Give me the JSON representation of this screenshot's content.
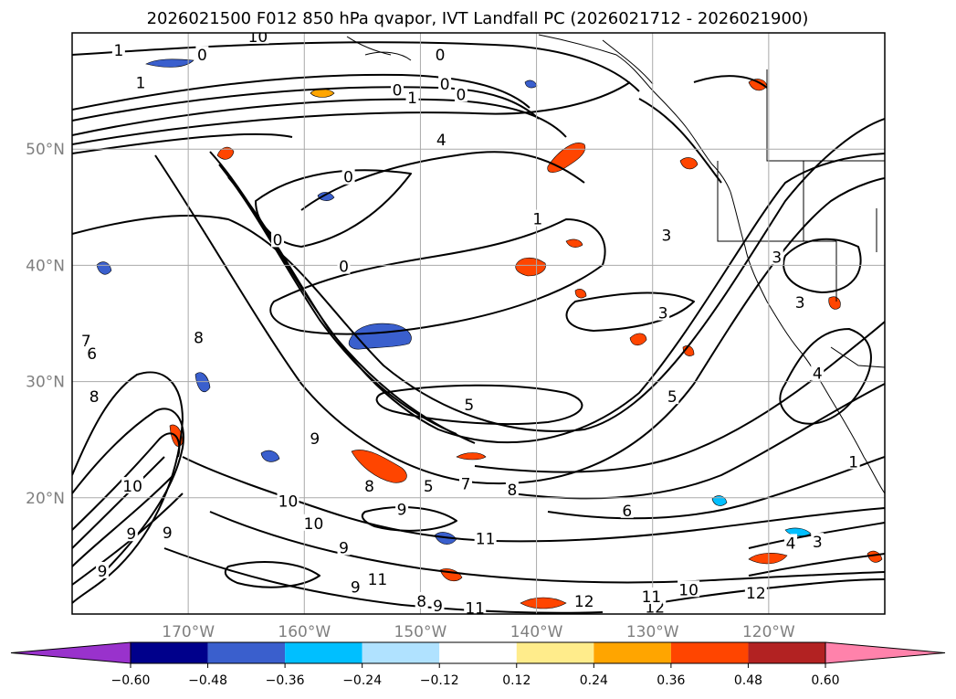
{
  "title": "2026021500 F012 850 hPa qvapor, IVT Landfall PC (2026021712 - 2026021900)",
  "map": {
    "lat_labels": [
      "50°N",
      "40°N",
      "30°N",
      "20°N"
    ],
    "lon_labels": [
      "170°W",
      "160°W",
      "150°W",
      "140°W",
      "130°W",
      "120°W"
    ],
    "lat_values": [
      50,
      40,
      30,
      20
    ],
    "lon_values": [
      -170,
      -160,
      -150,
      -140,
      -130,
      -120
    ],
    "lon_range": [
      -180,
      -110
    ],
    "lat_range": [
      10,
      60
    ],
    "grid": true,
    "contour_labels": [
      {
        "text": "1",
        "lon": -176,
        "lat": 58.5
      },
      {
        "text": "0",
        "lon": -168.8,
        "lat": 58.1
      },
      {
        "text": "1",
        "lon": -174.1,
        "lat": 55.7
      },
      {
        "text": "10",
        "lon": -164,
        "lat": 59.7
      },
      {
        "text": "0",
        "lon": -148.3,
        "lat": 58.1
      },
      {
        "text": "0",
        "lon": -152,
        "lat": 55.1
      },
      {
        "text": "1",
        "lon": -150.7,
        "lat": 54.4
      },
      {
        "text": "0",
        "lon": -147.9,
        "lat": 55.6
      },
      {
        "text": "0",
        "lon": -146.5,
        "lat": 54.7
      },
      {
        "text": "4",
        "lon": -148.2,
        "lat": 50.8
      },
      {
        "text": "0",
        "lon": -156.2,
        "lat": 47.6
      },
      {
        "text": "1",
        "lon": -139.9,
        "lat": 44
      },
      {
        "text": "3",
        "lon": -128.8,
        "lat": 42.6
      },
      {
        "text": "0",
        "lon": -156.6,
        "lat": 39.9
      },
      {
        "text": "0",
        "lon": -162.3,
        "lat": 42.2
      },
      {
        "text": "3",
        "lon": -129.1,
        "lat": 35.9
      },
      {
        "text": "3",
        "lon": -119.3,
        "lat": 40.7
      },
      {
        "text": "5",
        "lon": -145.8,
        "lat": 28
      },
      {
        "text": "5",
        "lon": -128.3,
        "lat": 28.7
      },
      {
        "text": "9",
        "lon": -159.1,
        "lat": 25.1
      },
      {
        "text": "10",
        "lon": -161.4,
        "lat": 19.7
      },
      {
        "text": "10",
        "lon": -174.8,
        "lat": 21
      },
      {
        "text": "10",
        "lon": -159.2,
        "lat": 17.8
      },
      {
        "text": "9",
        "lon": -174.9,
        "lat": 16.9
      },
      {
        "text": "9",
        "lon": -177.4,
        "lat": 13.7
      },
      {
        "text": "11",
        "lon": -144.4,
        "lat": 16.5
      },
      {
        "text": "11",
        "lon": -153.7,
        "lat": 13
      },
      {
        "text": "12",
        "lon": -135.9,
        "lat": 11.1
      },
      {
        "text": "12",
        "lon": -129.8,
        "lat": 10.6
      },
      {
        "text": "11",
        "lon": -145.3,
        "lat": 10.5
      },
      {
        "text": "10",
        "lon": -126.9,
        "lat": 12.1
      },
      {
        "text": "11",
        "lon": -130.1,
        "lat": 11.5
      },
      {
        "text": "12",
        "lon": -121.1,
        "lat": 11.8
      },
      {
        "text": "4",
        "lon": -118.1,
        "lat": 16.1
      },
      {
        "text": "3",
        "lon": -115.8,
        "lat": 16.2
      },
      {
        "text": "4",
        "lon": -115.8,
        "lat": 30.7
      },
      {
        "text": "3",
        "lon": -117.3,
        "lat": 36.8
      },
      {
        "text": "1",
        "lon": -112.7,
        "lat": 23.1
      },
      {
        "text": "9",
        "lon": -155.6,
        "lat": 12.3
      },
      {
        "text": "8",
        "lon": -149.9,
        "lat": 11.1
      },
      {
        "text": "9",
        "lon": -148.5,
        "lat": 10.7
      },
      {
        "text": "9",
        "lon": -156.6,
        "lat": 15.7
      },
      {
        "text": "8",
        "lon": -169.1,
        "lat": 33.8
      },
      {
        "text": "7",
        "lon": -178.8,
        "lat": 33.5
      },
      {
        "text": "6",
        "lon": -178.3,
        "lat": 32.4
      },
      {
        "text": "8",
        "lon": -178.1,
        "lat": 28.7
      },
      {
        "text": "9",
        "lon": -171.8,
        "lat": 17
      },
      {
        "text": "8",
        "lon": -142.1,
        "lat": 20.7
      },
      {
        "text": "5",
        "lon": -149.3,
        "lat": 21
      },
      {
        "text": "7",
        "lon": -146.1,
        "lat": 21.2
      },
      {
        "text": "6",
        "lon": -132.2,
        "lat": 18.9
      },
      {
        "text": "8",
        "lon": -154.4,
        "lat": 21
      },
      {
        "text": "9",
        "lon": -151.6,
        "lat": 19
      }
    ]
  },
  "colorbar": {
    "tick_labels": [
      "−0.60",
      "−0.48",
      "−0.36",
      "−0.24",
      "−0.12",
      "0.12",
      "0.24",
      "0.36",
      "0.48",
      "0.60"
    ],
    "colors": [
      "#9932CC",
      "#00008B",
      "#3A5FCD",
      "#00BFFF",
      "#B0E2FF",
      "#FFFFFF",
      "#FFEC8B",
      "#FFA500",
      "#FF4500",
      "#B22222",
      "#FF82AB"
    ],
    "extend": "both"
  }
}
